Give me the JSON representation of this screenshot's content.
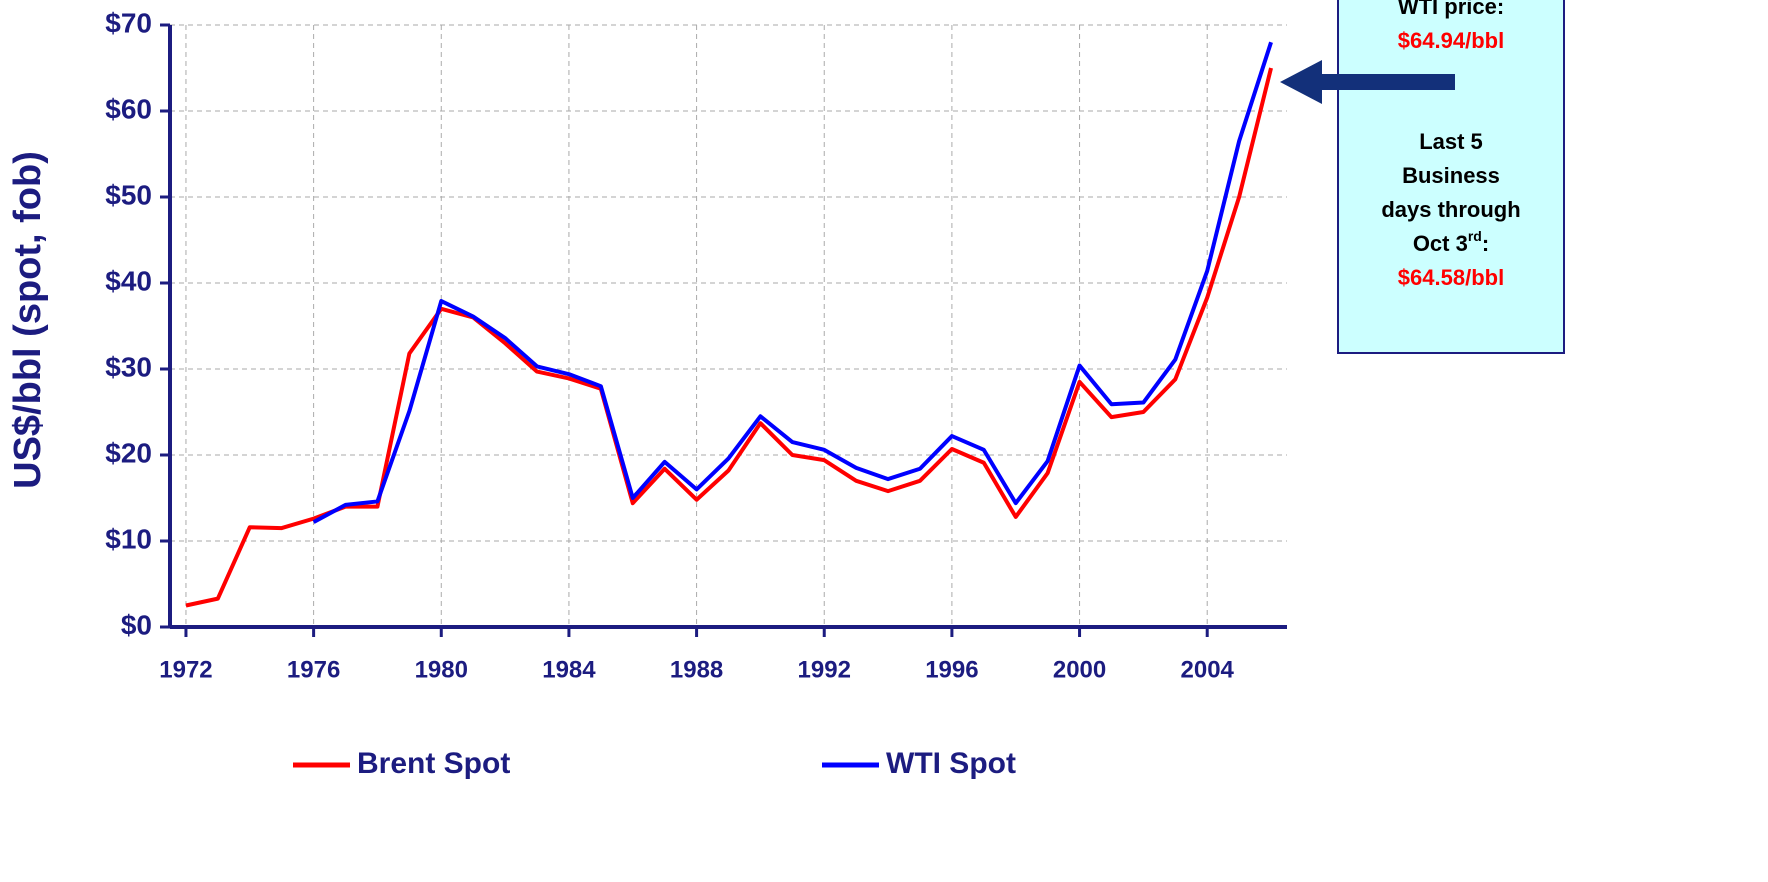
{
  "chart_data": {
    "type": "line",
    "y_label": "US$/bbl (spot, fob)",
    "x": [
      1972,
      1973,
      1974,
      1975,
      1976,
      1977,
      1978,
      1979,
      1980,
      1981,
      1982,
      1983,
      1984,
      1985,
      1986,
      1987,
      1988,
      1989,
      1990,
      1991,
      1992,
      1993,
      1994,
      1995,
      1996,
      1997,
      1998,
      1999,
      2000,
      2001,
      2002,
      2003,
      2004,
      2005,
      2006
    ],
    "series": [
      {
        "name": "Brent Spot",
        "color": "#ff0000",
        "values": [
          2.5,
          3.3,
          11.6,
          11.5,
          12.6,
          14.0,
          14.0,
          31.8,
          37.0,
          36.0,
          33.0,
          29.7,
          28.9,
          27.7,
          14.4,
          18.4,
          14.8,
          18.2,
          23.7,
          20.0,
          19.4,
          17.0,
          15.8,
          17.0,
          20.7,
          19.1,
          12.8,
          17.9,
          28.5,
          24.4,
          25.0,
          28.8,
          38.3,
          50.0,
          65.0
        ]
      },
      {
        "name": "WTI Spot",
        "color": "#0000ff",
        "values": [
          null,
          null,
          null,
          null,
          12.2,
          14.2,
          14.6,
          25.1,
          37.9,
          36.1,
          33.6,
          30.3,
          29.4,
          28.0,
          15.0,
          19.2,
          16.0,
          19.6,
          24.5,
          21.5,
          20.6,
          18.5,
          17.2,
          18.4,
          22.2,
          20.6,
          14.4,
          19.3,
          30.4,
          25.9,
          26.1,
          31.1,
          41.4,
          56.5,
          68.0
        ]
      }
    ],
    "xlim": [
      1971.5,
      2006.5
    ],
    "xticks": [
      1972,
      1976,
      1980,
      1984,
      1988,
      1992,
      1996,
      2000,
      2004
    ],
    "ylim": [
      0,
      70
    ],
    "yticks": [
      {
        "value": 0,
        "label": "$0"
      },
      {
        "value": 10,
        "label": "$10"
      },
      {
        "value": 20,
        "label": "$20"
      },
      {
        "value": 30,
        "label": "$30"
      },
      {
        "value": 40,
        "label": "$40"
      },
      {
        "value": 50,
        "label": "$50"
      },
      {
        "value": 60,
        "label": "$60"
      },
      {
        "value": 70,
        "label": "$70"
      }
    ],
    "grid": true,
    "legend": "bottom",
    "annotation": {
      "line1": "WTI price:",
      "price1": "$64.94/bbl",
      "line2": "Last 5",
      "line3": "Business",
      "line4": "days through",
      "line5a": "Oct 3",
      "line5sup": "rd",
      "line5b": ":",
      "price2": "$64.58/bbl"
    }
  }
}
